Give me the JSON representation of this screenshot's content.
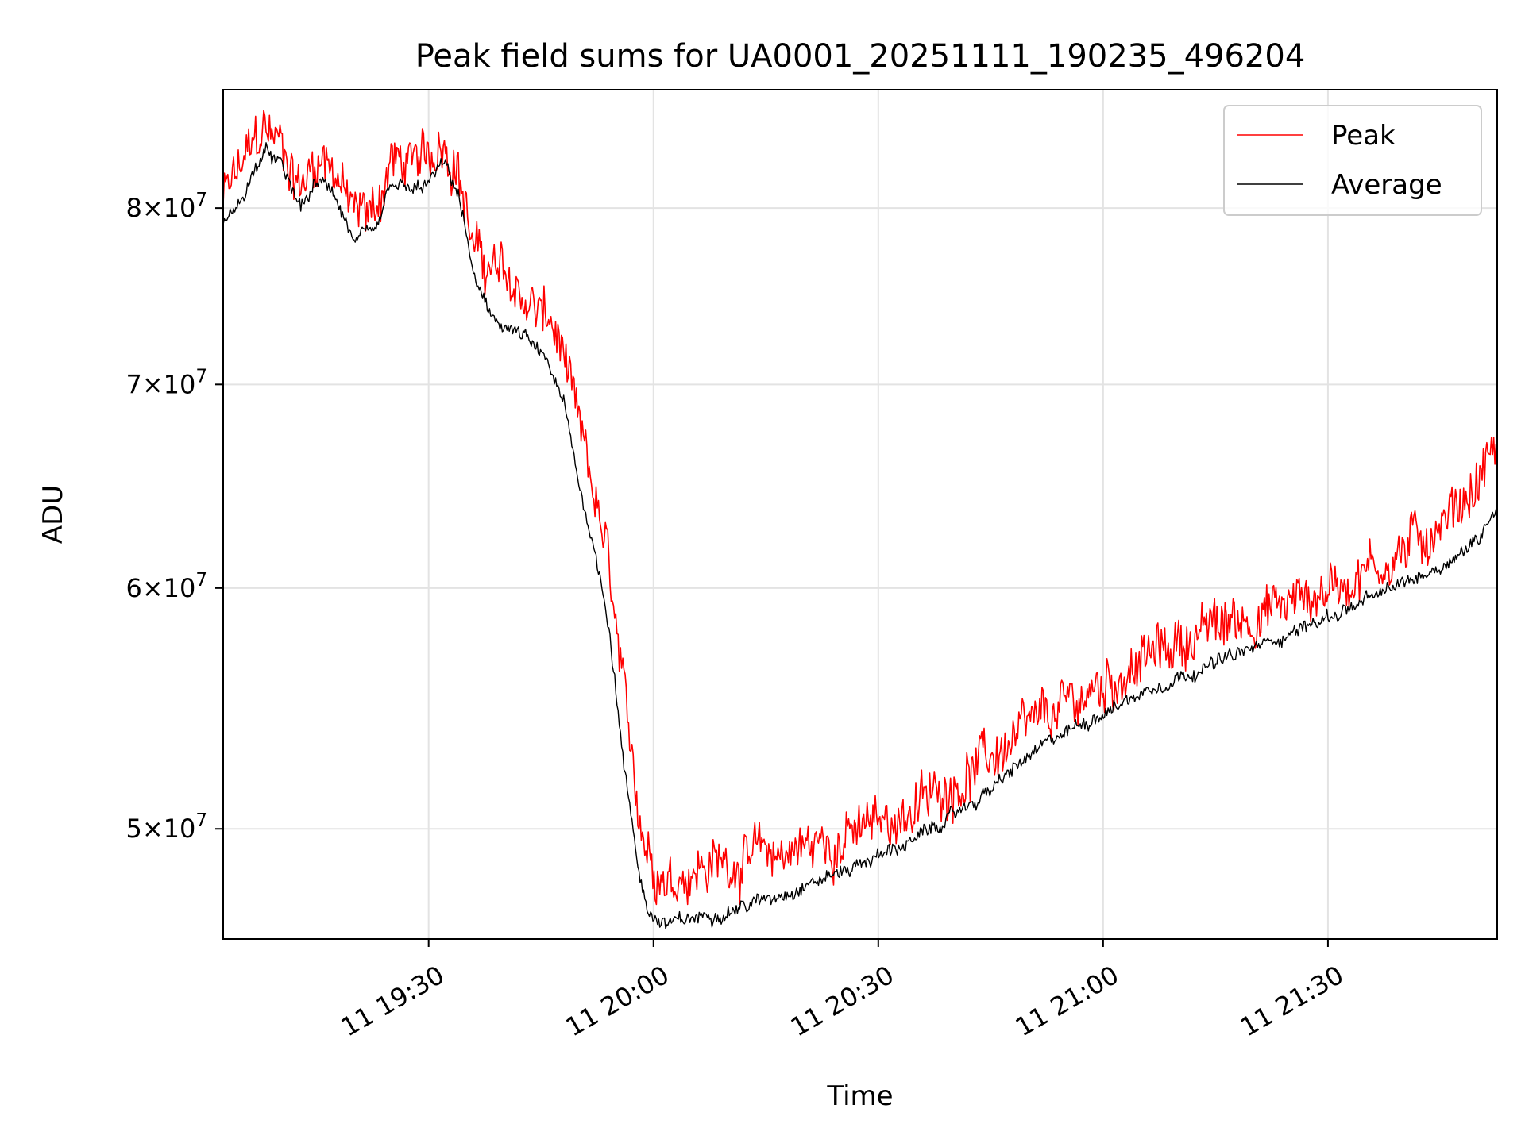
{
  "chart_data": {
    "type": "line",
    "title": "Peak field sums for UA0001_20251111_190235_496204",
    "xlabel": "Time",
    "ylabel": "ADU",
    "y_scale": "log",
    "ylim": [
      46000000,
      87500000
    ],
    "xlim": [
      "2025-11-11 19:02:35",
      "2025-11-11 21:52:35"
    ],
    "grid": true,
    "legend_position": "top-right",
    "x_ticks": [
      {
        "value": "2025-11-11 19:30",
        "label": "11 19:30"
      },
      {
        "value": "2025-11-11 20:00",
        "label": "11 20:00"
      },
      {
        "value": "2025-11-11 20:30",
        "label": "11 20:30"
      },
      {
        "value": "2025-11-11 21:00",
        "label": "11 21:00"
      },
      {
        "value": "2025-11-11 21:30",
        "label": "11 21:30"
      }
    ],
    "y_ticks": [
      {
        "value": 50000000,
        "mantissa": "5",
        "exponent": "7"
      },
      {
        "value": 60000000,
        "mantissa": "6",
        "exponent": "7"
      },
      {
        "value": 70000000,
        "mantissa": "7",
        "exponent": "7"
      },
      {
        "value": 80000000,
        "mantissa": "8",
        "exponent": "7"
      }
    ],
    "x": [
      "2025-11-11 19:02:35",
      "2025-11-11 19:05",
      "2025-11-11 19:08",
      "2025-11-11 19:10",
      "2025-11-11 19:13",
      "2025-11-11 19:15",
      "2025-11-11 19:17",
      "2025-11-11 19:20",
      "2025-11-11 19:23",
      "2025-11-11 19:25",
      "2025-11-11 19:28",
      "2025-11-11 19:30",
      "2025-11-11 19:32",
      "2025-11-11 19:34",
      "2025-11-11 19:36",
      "2025-11-11 19:38",
      "2025-11-11 19:40",
      "2025-11-11 19:43",
      "2025-11-11 19:46",
      "2025-11-11 19:48",
      "2025-11-11 19:50",
      "2025-11-11 19:52",
      "2025-11-11 19:54",
      "2025-11-11 19:56",
      "2025-11-11 19:58",
      "2025-11-11 19:59",
      "2025-11-11 20:00",
      "2025-11-11 20:02",
      "2025-11-11 20:05",
      "2025-11-11 20:10",
      "2025-11-11 20:15",
      "2025-11-11 20:20",
      "2025-11-11 20:25",
      "2025-11-11 20:30",
      "2025-11-11 20:35",
      "2025-11-11 20:40",
      "2025-11-11 20:45",
      "2025-11-11 20:50",
      "2025-11-11 20:55",
      "2025-11-11 21:00",
      "2025-11-11 21:05",
      "2025-11-11 21:10",
      "2025-11-11 21:15",
      "2025-11-11 21:20",
      "2025-11-11 21:25",
      "2025-11-11 21:30",
      "2025-11-11 21:35",
      "2025-11-11 21:40",
      "2025-11-11 21:45",
      "2025-11-11 21:50",
      "2025-11-11 21:52:35"
    ],
    "series": [
      {
        "name": "Peak",
        "color": "#ff0000",
        "values": [
          80500000,
          82500000,
          85000000,
          84200000,
          81200000,
          83200000,
          83000000,
          79500000,
          80000000,
          83000000,
          82500000,
          83000000,
          84500000,
          82500000,
          77500000,
          76500000,
          76000000,
          74500000,
          73500000,
          71500000,
          67500000,
          64500000,
          61000000,
          55000000,
          51000000,
          49500000,
          48800000,
          48200000,
          48500000,
          48800000,
          49000000,
          49300000,
          49600000,
          50200000,
          50800000,
          51800000,
          52800000,
          53800000,
          54800000,
          55800000,
          56700000,
          57600000,
          58300000,
          58800000,
          59300000,
          60000000,
          60800000,
          61700000,
          63000000,
          65000000,
          67200000
        ],
        "noise": 0.022
      },
      {
        "name": "Average",
        "color": "#000000",
        "values": [
          79000000,
          80500000,
          83500000,
          82800000,
          80000000,
          81500000,
          81300000,
          78000000,
          78500000,
          81500000,
          81000000,
          81500000,
          82800000,
          80800000,
          76000000,
          73800000,
          73200000,
          72500000,
          71000000,
          69000000,
          65000000,
          62000000,
          58500000,
          52500000,
          48500000,
          47300000,
          46700000,
          46500000,
          46700000,
          47000000,
          47400000,
          47900000,
          48400000,
          49000000,
          49600000,
          50500000,
          51500000,
          52800000,
          53800000,
          54600000,
          55400000,
          56100000,
          56700000,
          57300000,
          58000000,
          58700000,
          59400000,
          60200000,
          61000000,
          62200000,
          64000000
        ],
        "noise": 0.006
      }
    ]
  }
}
